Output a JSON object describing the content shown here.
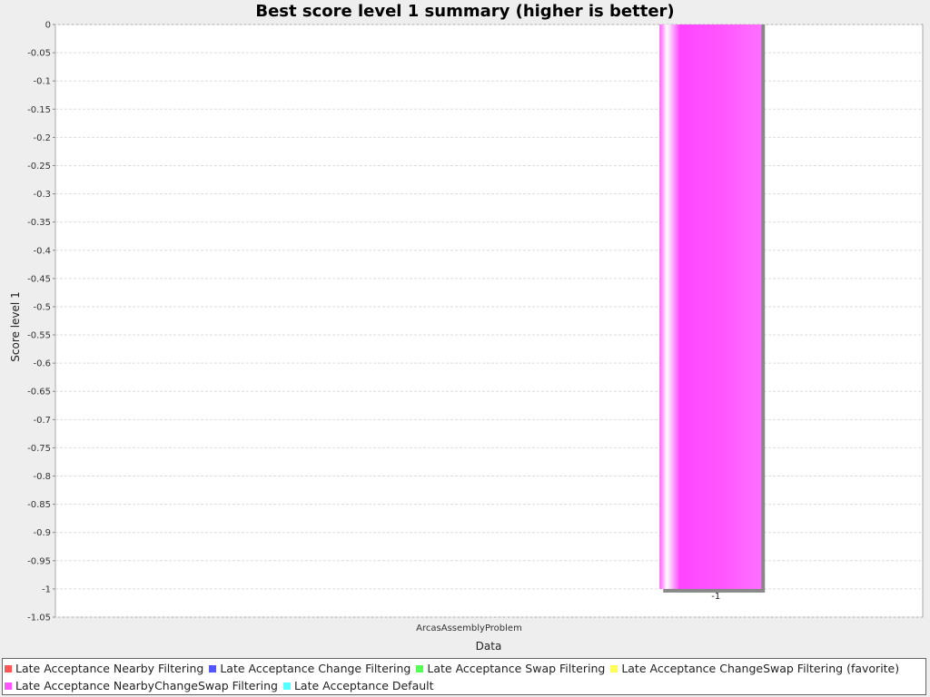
{
  "chart_data": {
    "type": "bar",
    "title": "Best score level 1 summary (higher is better)",
    "xlabel": "Data",
    "ylabel": "Score level 1",
    "categories": [
      "ArcasAssemblyProblem"
    ],
    "ylim": [
      -1.05,
      0
    ],
    "ytick_step": 0.05,
    "yticks": [
      "0",
      "-0.05",
      "-0.1",
      "-0.15",
      "-0.2",
      "-0.25",
      "-0.3",
      "-0.35",
      "-0.4",
      "-0.45",
      "-0.5",
      "-0.55",
      "-0.6",
      "-0.65",
      "-0.7",
      "-0.75",
      "-0.8",
      "-0.85",
      "-0.9",
      "-0.95",
      "-1",
      "-1.05"
    ],
    "grid": true,
    "legend_position": "bottom",
    "series": [
      {
        "name": "Late Acceptance Nearby Filtering",
        "color": "#ff5555",
        "values": [
          null
        ]
      },
      {
        "name": "Late Acceptance Change Filtering",
        "color": "#5555ff",
        "values": [
          null
        ]
      },
      {
        "name": "Late Acceptance Swap Filtering",
        "color": "#55ff55",
        "values": [
          null
        ]
      },
      {
        "name": "Late Acceptance ChangeSwap Filtering (favorite)",
        "color": "#ffff55",
        "values": [
          null
        ]
      },
      {
        "name": "Late Acceptance NearbyChangeSwap Filtering",
        "color": "#ff55ff",
        "values": [
          -1
        ],
        "labels": [
          "-1"
        ]
      },
      {
        "name": "Late Acceptance Default",
        "color": "#55ffff",
        "values": [
          null
        ]
      }
    ]
  }
}
